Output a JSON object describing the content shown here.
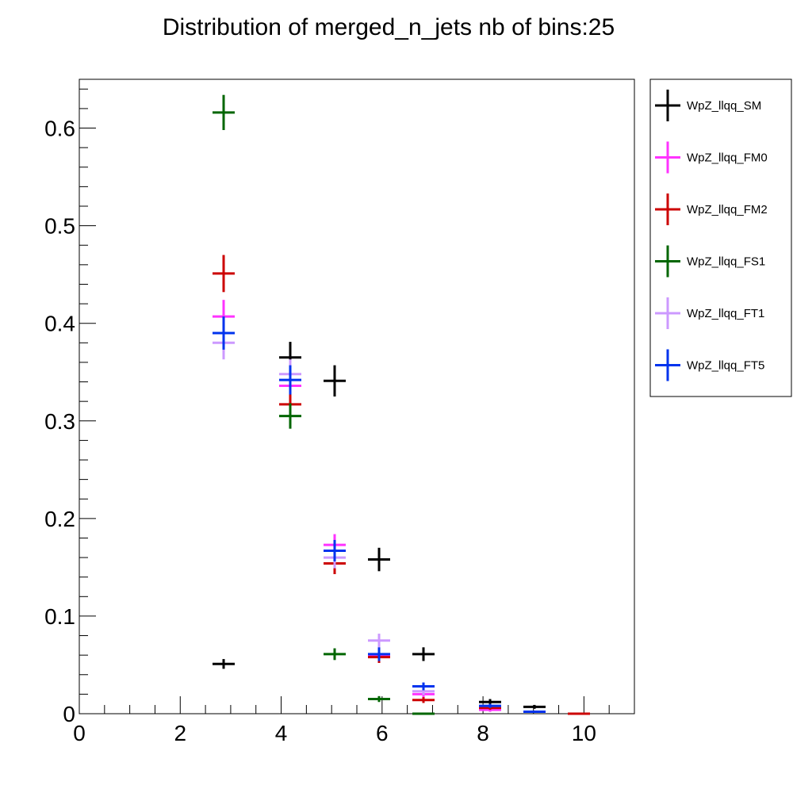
{
  "chart_data": {
    "type": "scatter",
    "title": "Distribution of merged_n_jets nb of bins:25",
    "xlabel": "",
    "ylabel": "",
    "xlim": [
      0,
      11
    ],
    "ylim": [
      0,
      0.65
    ],
    "x_ticks": [
      0,
      2,
      4,
      6,
      8,
      10
    ],
    "x_tick_labels": [
      "0",
      "2",
      "4",
      "6",
      "8",
      "10"
    ],
    "y_ticks": [
      0,
      0.1,
      0.2,
      0.3,
      0.4,
      0.5,
      0.6
    ],
    "y_tick_labels": [
      "0",
      "0.1",
      "0.2",
      "0.3",
      "0.4",
      "0.5",
      "0.6"
    ],
    "grid": false,
    "legend_position": "right",
    "bin_half_width": 0.22,
    "series": [
      {
        "name": "WpZ_llqq_SM",
        "color": "#000000",
        "points": [
          {
            "x": 2.86,
            "y": 0.051,
            "err": 0.005
          },
          {
            "x": 4.18,
            "y": 0.365,
            "err": 0.016
          },
          {
            "x": 5.06,
            "y": 0.341,
            "err": 0.016
          },
          {
            "x": 5.94,
            "y": 0.158,
            "err": 0.012
          },
          {
            "x": 6.82,
            "y": 0.061,
            "err": 0.007
          },
          {
            "x": 8.14,
            "y": 0.012,
            "err": 0.003
          },
          {
            "x": 9.02,
            "y": 0.007,
            "err": 0.002
          }
        ]
      },
      {
        "name": "WpZ_llqq_FM0",
        "color": "#ff33ff",
        "points": [
          {
            "x": 2.86,
            "y": 0.407,
            "err": 0.017
          },
          {
            "x": 4.18,
            "y": 0.336,
            "err": 0.015
          },
          {
            "x": 5.06,
            "y": 0.173,
            "err": 0.011
          },
          {
            "x": 5.94,
            "y": 0.06,
            "err": 0.007
          },
          {
            "x": 6.82,
            "y": 0.02,
            "err": 0.004
          },
          {
            "x": 8.14,
            "y": 0.004,
            "err": 0.002
          }
        ]
      },
      {
        "name": "WpZ_llqq_FM2",
        "color": "#cc0000",
        "points": [
          {
            "x": 2.86,
            "y": 0.451,
            "err": 0.019
          },
          {
            "x": 4.18,
            "y": 0.317,
            "err": 0.015
          },
          {
            "x": 5.06,
            "y": 0.154,
            "err": 0.011
          },
          {
            "x": 5.94,
            "y": 0.058,
            "err": 0.006
          },
          {
            "x": 6.82,
            "y": 0.014,
            "err": 0.003
          },
          {
            "x": 8.14,
            "y": 0.006,
            "err": 0.002
          },
          {
            "x": 9.9,
            "y": 0.0,
            "err": 0.001
          }
        ]
      },
      {
        "name": "WpZ_llqq_FS1",
        "color": "#006600",
        "points": [
          {
            "x": 2.86,
            "y": 0.616,
            "err": 0.018
          },
          {
            "x": 4.18,
            "y": 0.305,
            "err": 0.013
          },
          {
            "x": 5.06,
            "y": 0.061,
            "err": 0.006
          },
          {
            "x": 5.94,
            "y": 0.015,
            "err": 0.003
          },
          {
            "x": 6.82,
            "y": 0.0,
            "err": 0.001
          }
        ]
      },
      {
        "name": "WpZ_llqq_FT1",
        "color": "#cc99ff",
        "points": [
          {
            "x": 2.86,
            "y": 0.38,
            "err": 0.017
          },
          {
            "x": 4.18,
            "y": 0.348,
            "err": 0.015
          },
          {
            "x": 5.06,
            "y": 0.16,
            "err": 0.011
          },
          {
            "x": 5.94,
            "y": 0.075,
            "err": 0.007
          },
          {
            "x": 6.82,
            "y": 0.023,
            "err": 0.004
          },
          {
            "x": 8.14,
            "y": 0.008,
            "err": 0.002
          }
        ]
      },
      {
        "name": "WpZ_llqq_FT5",
        "color": "#0033ee",
        "points": [
          {
            "x": 2.86,
            "y": 0.39,
            "err": 0.017
          },
          {
            "x": 4.18,
            "y": 0.342,
            "err": 0.015
          },
          {
            "x": 5.06,
            "y": 0.167,
            "err": 0.011
          },
          {
            "x": 5.94,
            "y": 0.061,
            "err": 0.007
          },
          {
            "x": 6.82,
            "y": 0.028,
            "err": 0.004
          },
          {
            "x": 8.14,
            "y": 0.008,
            "err": 0.002
          },
          {
            "x": 9.02,
            "y": 0.002,
            "err": 0.001
          }
        ]
      }
    ]
  }
}
